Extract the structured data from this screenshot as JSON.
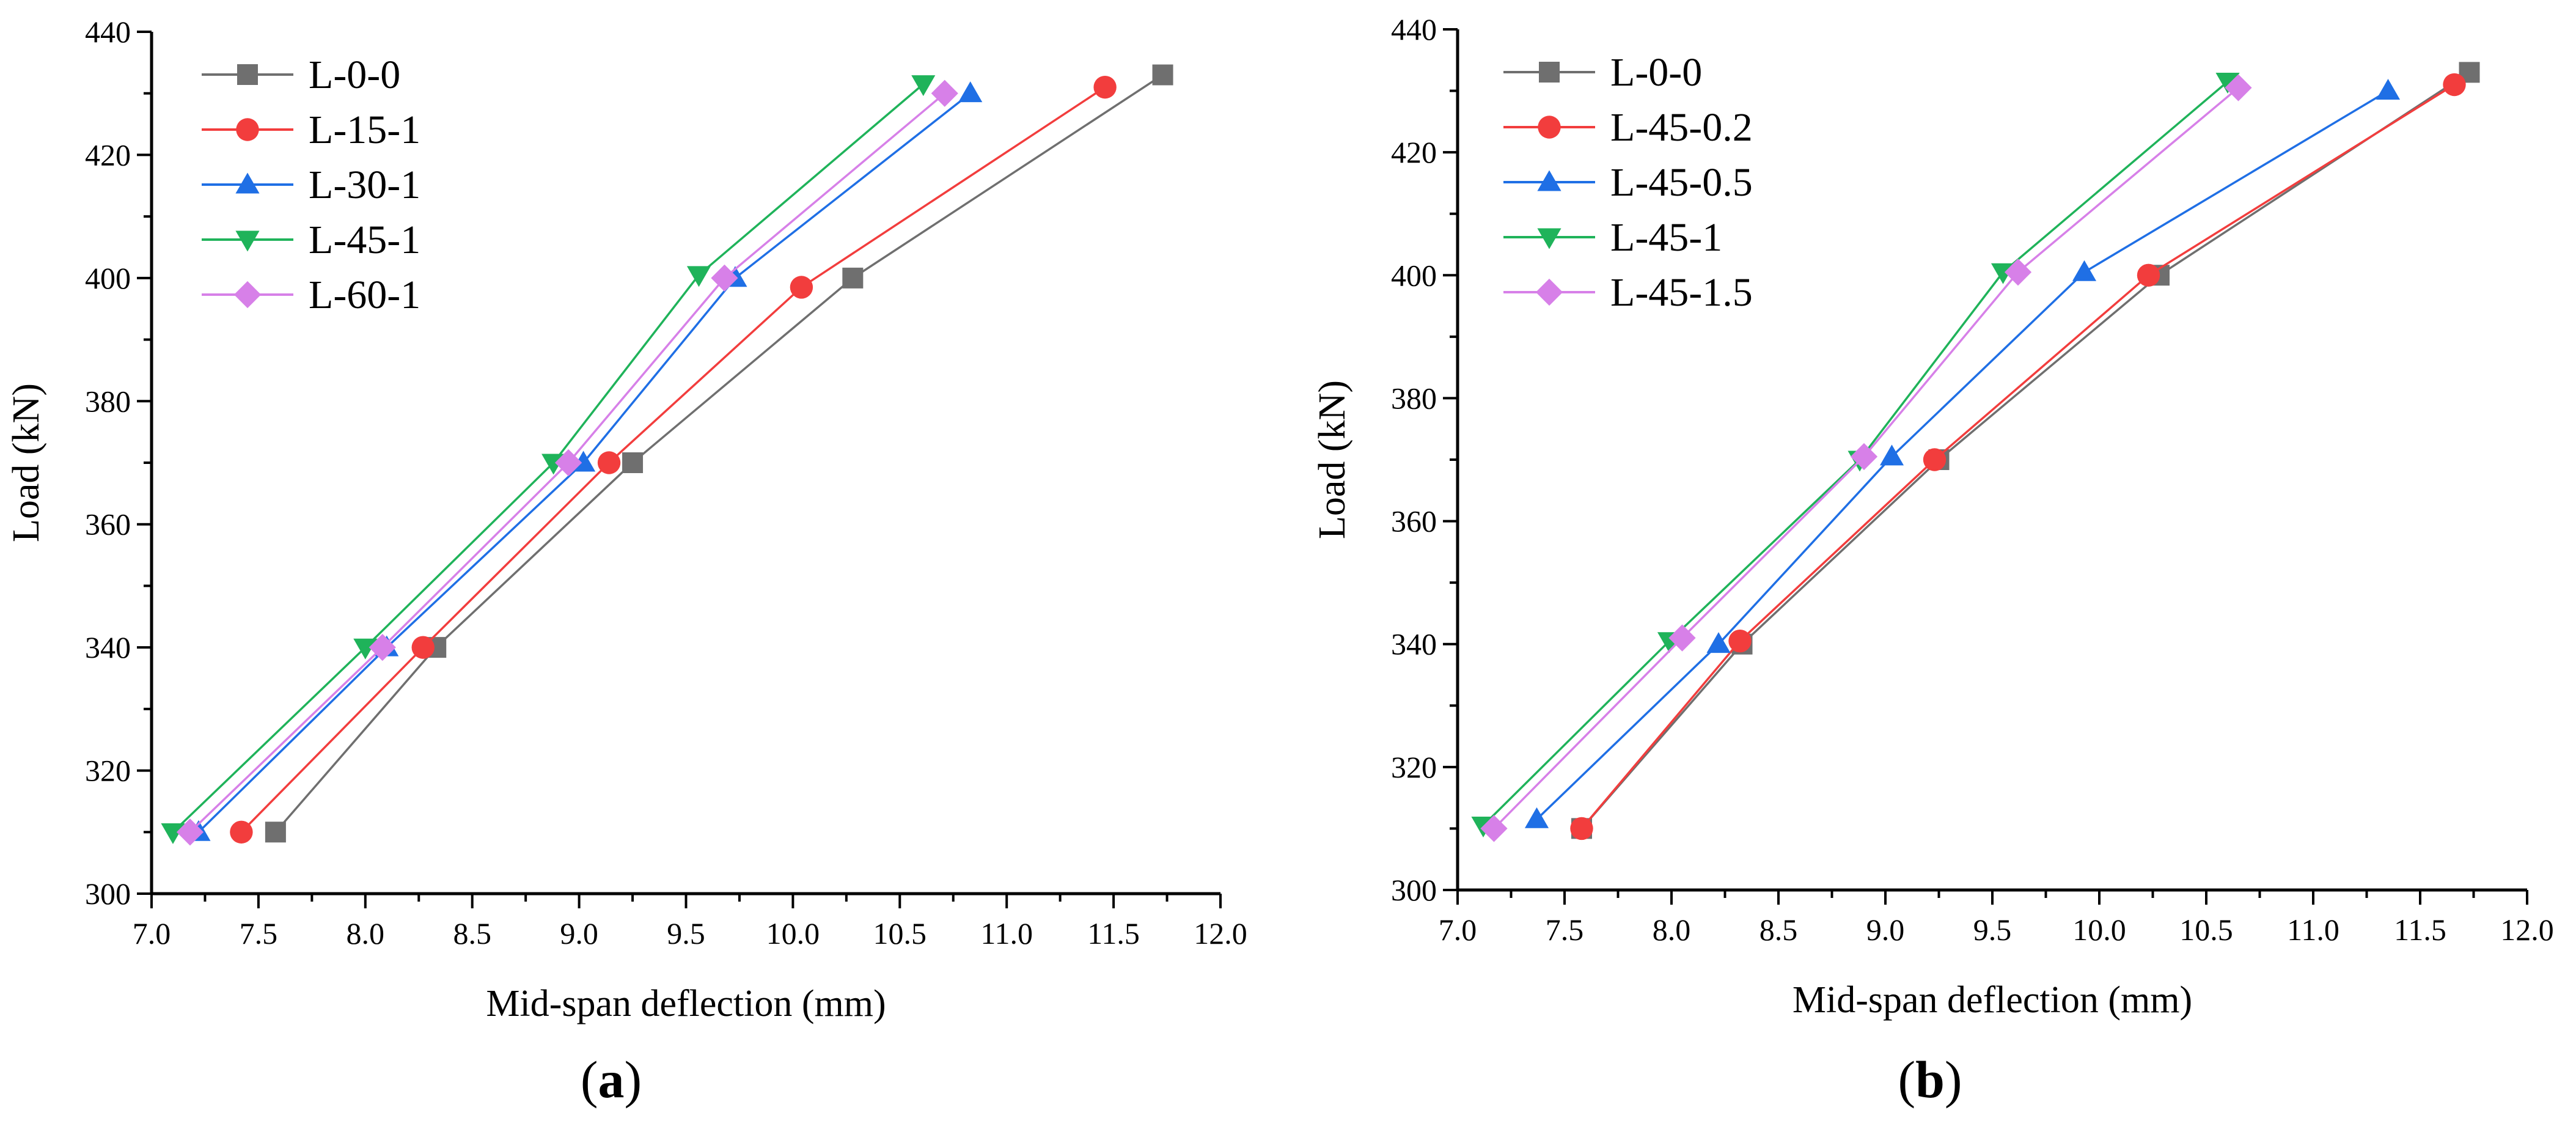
{
  "chart_data": [
    {
      "type": "line",
      "panel_label": "a",
      "xlabel": "Mid-span deflection (mm)",
      "ylabel": "Load (kN)",
      "xlim": [
        7.0,
        12.0
      ],
      "ylim": [
        300,
        440
      ],
      "xticks": [
        7.0,
        7.5,
        8.0,
        8.5,
        9.0,
        9.5,
        10.0,
        10.5,
        11.0,
        11.5,
        12.0
      ],
      "xtick_labels": [
        "7.0",
        "7.5",
        "8.0",
        "8.5",
        "9.0",
        "9.5",
        "10.0",
        "10.5",
        "11.0",
        "11.5",
        "12.0"
      ],
      "yticks": [
        300,
        320,
        340,
        360,
        380,
        400,
        420,
        440
      ],
      "ytick_labels": [
        "300",
        "320",
        "340",
        "360",
        "380",
        "400",
        "420",
        "440"
      ],
      "legend_position": "top-left",
      "series": [
        {
          "name": "L-0-0",
          "color": "#6f6f6f",
          "marker": "square",
          "x": [
            7.58,
            8.33,
            9.25,
            10.28,
            11.73
          ],
          "y": [
            310,
            340,
            370,
            400,
            433
          ]
        },
        {
          "name": "L-15-1",
          "color": "#f23d3d",
          "marker": "circle",
          "x": [
            7.42,
            8.27,
            9.14,
            10.04,
            11.46
          ],
          "y": [
            310,
            340,
            370,
            398.5,
            431
          ]
        },
        {
          "name": "L-30-1",
          "color": "#1f6fe5",
          "marker": "triangle-up",
          "x": [
            7.22,
            8.1,
            9.02,
            9.73,
            10.83
          ],
          "y": [
            310,
            340,
            370,
            400,
            430
          ]
        },
        {
          "name": "L-45-1",
          "color": "#1fb35a",
          "marker": "triangle-down",
          "x": [
            7.1,
            8.0,
            8.88,
            9.56,
            10.61
          ],
          "y": [
            310,
            340,
            370,
            400.5,
            431.5
          ]
        },
        {
          "name": "L-60-1",
          "color": "#d780e8",
          "marker": "diamond",
          "x": [
            7.18,
            8.08,
            8.95,
            9.68,
            10.71
          ],
          "y": [
            310,
            340,
            370,
            400,
            430
          ]
        }
      ]
    },
    {
      "type": "line",
      "panel_label": "b",
      "xlabel": "Mid-span deflection (mm)",
      "ylabel": "Load (kN)",
      "xlim": [
        7.0,
        12.0
      ],
      "ylim": [
        300,
        440
      ],
      "xticks": [
        7.0,
        7.5,
        8.0,
        8.5,
        9.0,
        9.5,
        10.0,
        10.5,
        11.0,
        11.5,
        12.0
      ],
      "xtick_labels": [
        "7.0",
        "7.5",
        "8.0",
        "8.5",
        "9.0",
        "9.5",
        "10.0",
        "10.5",
        "11.0",
        "11.5",
        "12.0"
      ],
      "yticks": [
        300,
        320,
        340,
        360,
        380,
        400,
        420,
        440
      ],
      "ytick_labels": [
        "300",
        "320",
        "340",
        "360",
        "380",
        "400",
        "420",
        "440"
      ],
      "legend_position": "top-left",
      "series": [
        {
          "name": "L-0-0",
          "color": "#6f6f6f",
          "marker": "square",
          "x": [
            7.58,
            8.33,
            9.25,
            10.28,
            11.73
          ],
          "y": [
            310,
            340,
            370,
            400,
            433
          ]
        },
        {
          "name": "L-45-0.2",
          "color": "#f23d3d",
          "marker": "circle",
          "x": [
            7.58,
            8.32,
            9.23,
            10.23,
            11.66
          ],
          "y": [
            310,
            340.5,
            370,
            400,
            431
          ]
        },
        {
          "name": "L-45-0.5",
          "color": "#1f6fe5",
          "marker": "triangle-up",
          "x": [
            7.37,
            8.22,
            9.03,
            9.93,
            11.35
          ],
          "y": [
            311.5,
            340,
            370.5,
            400.5,
            430
          ]
        },
        {
          "name": "L-45-1",
          "color": "#1fb35a",
          "marker": "triangle-down",
          "x": [
            7.12,
            7.99,
            8.88,
            9.55,
            10.6
          ],
          "y": [
            310.5,
            340.5,
            370,
            400.5,
            431.5
          ]
        },
        {
          "name": "L-45-1.5",
          "color": "#d780e8",
          "marker": "diamond",
          "x": [
            7.17,
            8.05,
            8.9,
            9.62,
            10.65
          ],
          "y": [
            310,
            341,
            370.5,
            400.5,
            430.5
          ]
        }
      ]
    }
  ]
}
